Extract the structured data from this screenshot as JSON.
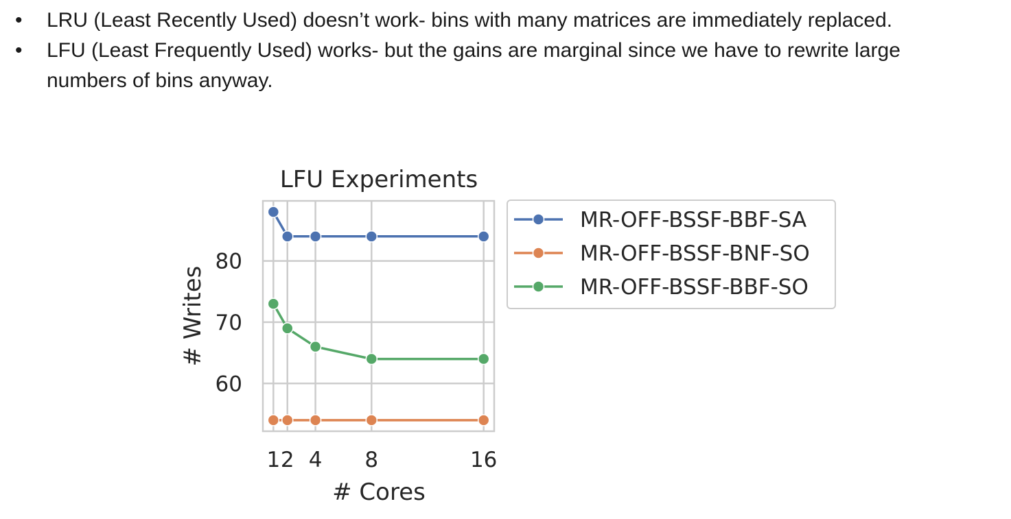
{
  "bullets": [
    {
      "marker": "•",
      "text": "LRU (Least Recently Used) doesn’t work- bins with many matrices are immediately replaced."
    },
    {
      "marker": "•",
      "text": "LFU (Least Frequently Used) works- but the gains are marginal since we have to rewrite large numbers of bins anyway."
    }
  ],
  "chart_data": {
    "type": "line",
    "title": "LFU Experiments",
    "xlabel": "# Cores",
    "ylabel": "# Writes",
    "x": [
      1,
      2,
      4,
      8,
      16
    ],
    "x_ticks": [
      1,
      2,
      4,
      8,
      16
    ],
    "x_tick_labels": [
      "1",
      "2",
      "4",
      "8",
      "16"
    ],
    "y_ticks": [
      60,
      70,
      80
    ],
    "y_tick_labels": [
      "60",
      "70",
      "80"
    ],
    "xlim": [
      0.25,
      16.75
    ],
    "ylim": [
      52.2,
      89.8
    ],
    "grid": true,
    "legend_position": "outside-right",
    "series": [
      {
        "name": "MR-OFF-BSSF-BBF-SA",
        "color": "#4c72b0",
        "values": [
          88,
          84,
          84,
          84,
          84
        ]
      },
      {
        "name": "MR-OFF-BSSF-BNF-SO",
        "color": "#dd8452",
        "values": [
          54,
          54,
          54,
          54,
          54
        ]
      },
      {
        "name": "MR-OFF-BSSF-BBF-SO",
        "color": "#55a868",
        "values": [
          73,
          69,
          66,
          64,
          64
        ]
      }
    ]
  }
}
